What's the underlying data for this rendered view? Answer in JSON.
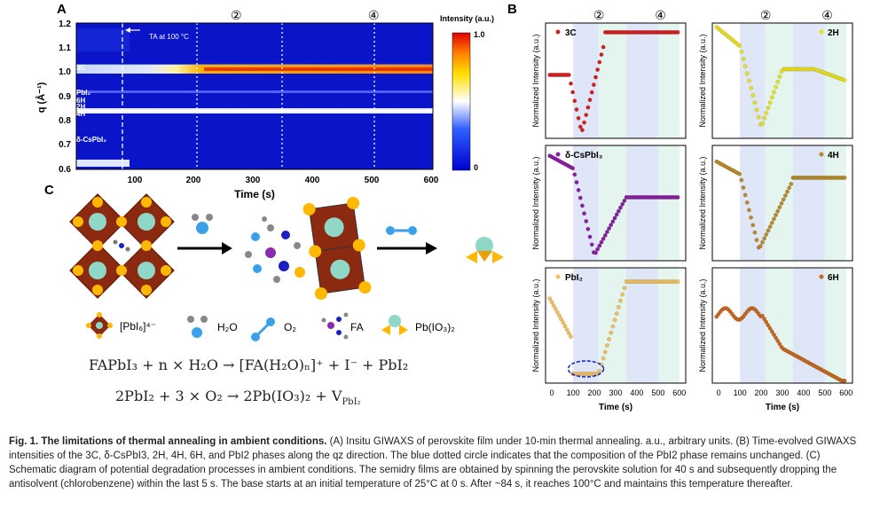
{
  "panel_labels": {
    "a": "A",
    "b": "B",
    "c": "C"
  },
  "panel_a": {
    "ylabel": "q (Å⁻¹)",
    "xlabel": "Time (s)",
    "xticks": [
      "100",
      "200",
      "300",
      "400",
      "500",
      "600"
    ],
    "yticks": [
      "1.2",
      "1.1",
      "1.0",
      "0.9",
      "0.8",
      "0.7",
      "0.6"
    ],
    "annotation": "TA at 100 °C",
    "markers": [
      "②",
      "④"
    ],
    "colorbar_title": "Intensity (a.u.)",
    "colorbar_max": "1.0",
    "colorbar_min": "0",
    "phase_labels": [
      "3C",
      "PbI₂",
      "6H",
      "2H",
      "4H",
      "δ-CsPbI₃"
    ]
  },
  "panel_b": {
    "ylabel": "Normalized Intensity (a.u.)",
    "xlabel": "Time (s)",
    "xticks": [
      "0",
      "100",
      "200",
      "300",
      "400",
      "500",
      "600"
    ],
    "markers": [
      "②",
      "④"
    ],
    "subplots": [
      {
        "name": "3C",
        "color": "#d42020"
      },
      {
        "name": "2H",
        "color": "#e8e020"
      },
      {
        "name": "δ-CsPbI₃",
        "color": "#8a1fa0"
      },
      {
        "name": "4H",
        "color": "#b88a2a"
      },
      {
        "name": "PbI₂",
        "color": "#f0c060"
      },
      {
        "name": "6H",
        "color": "#c86820"
      }
    ]
  },
  "panel_c": {
    "legend": [
      "[PbI₆]⁴⁻",
      "H₂O",
      "O₂",
      "FA",
      "Pb(IO₃)₂"
    ],
    "eq1": "FAPbI₃ + n × H₂O → [FA(H₂O)ₙ]⁺ + I⁻ + PbI₂",
    "eq2": "2PbI₂ + 3 × O₂ → 2Pb(IO₃)₂ + V",
    "eq2_sub": "PbI₂"
  },
  "caption": {
    "title": "Fig. 1. The limitations of thermal annealing in ambient conditions.",
    "body": " (A) Insitu GIWAXS of perovskite film under 10-min thermal annealing. a.u., arbitrary units. (B) Time-evolved GIWAXS intensities of the 3C, δ-CsPbI3, 2H, 4H, 6H, and PbI2 phases along the qz direction. The blue dotted circle indicates that the composition of the PbI2 phase remains unchanged. (C) Schematic diagram of potential degradation processes in ambient conditions. The semidry films are obtained by spinning the perovskite solution for 40 s and subsequently dropping the antisolvent (chlorobenzene) within the last 5 s. The base starts at an initial temperature of 25°C at 0 s. After ~84 s, it reaches 100°C and maintains this temperature thereafter."
  }
}
